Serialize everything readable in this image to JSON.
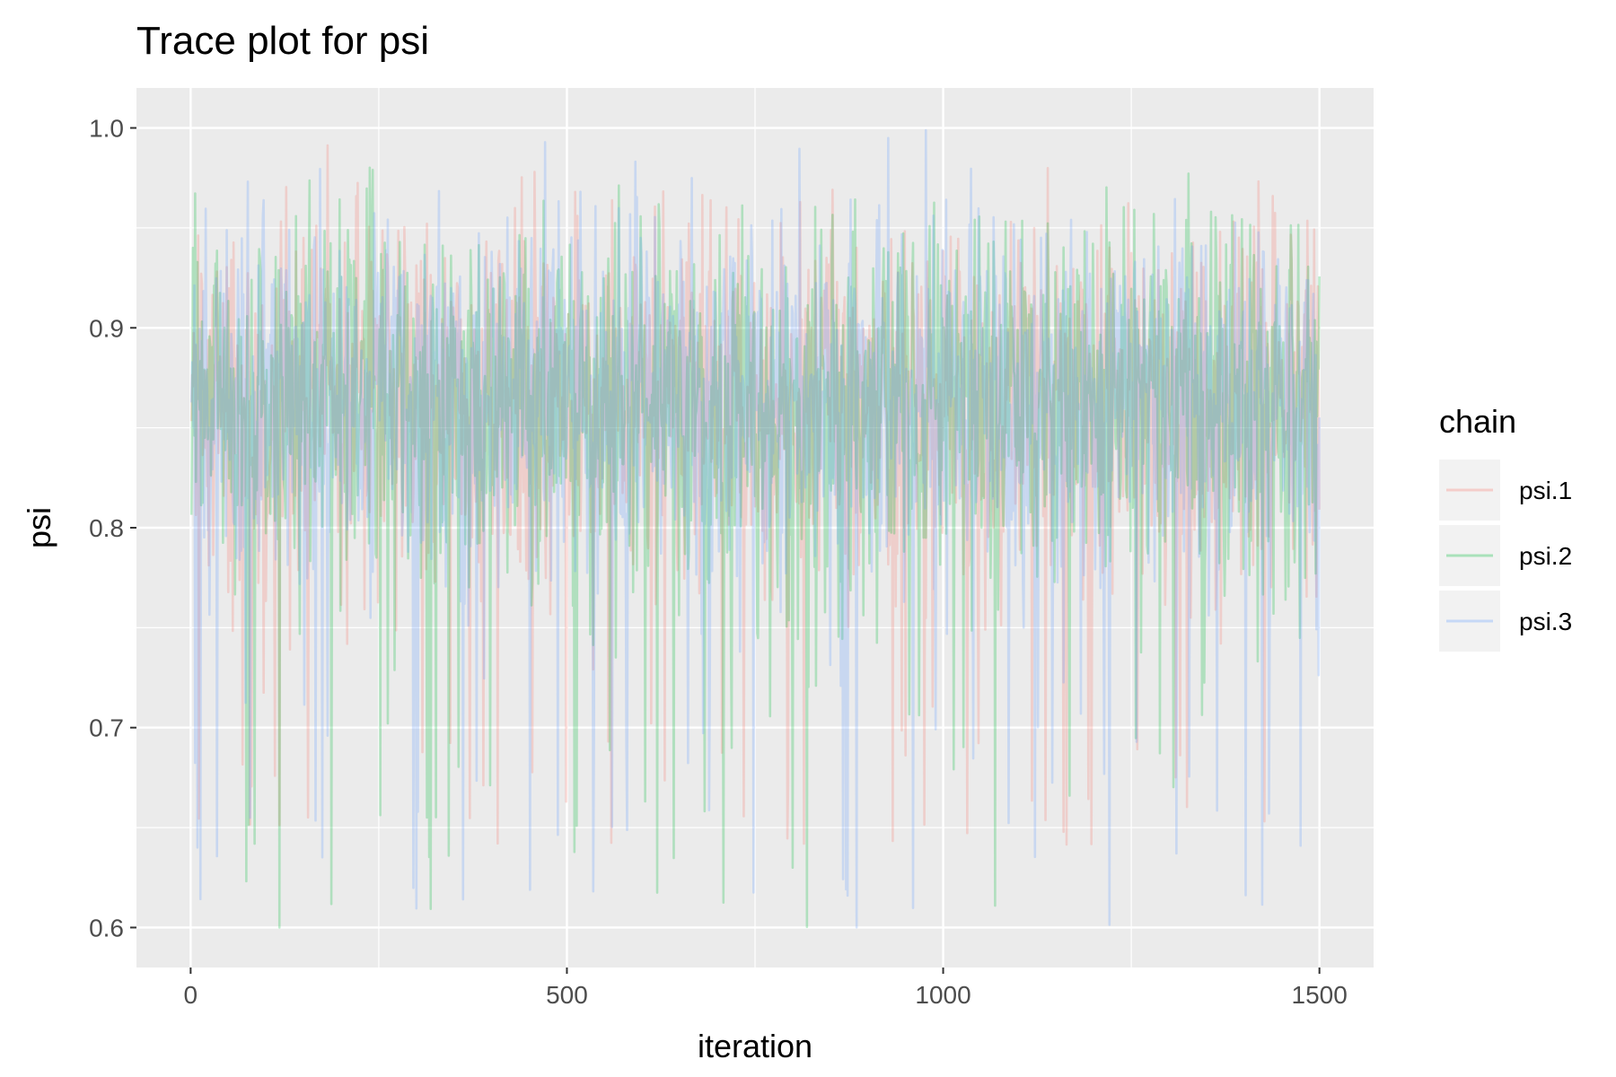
{
  "chart_data": {
    "type": "line",
    "title": "Trace plot for psi",
    "xlabel": "iteration",
    "ylabel": "psi",
    "xlim": [
      -72,
      1572
    ],
    "ylim": [
      0.58,
      1.02
    ],
    "x_ticks": [
      0,
      500,
      1000,
      1500
    ],
    "x_tick_labels": [
      "0",
      "500",
      "1000",
      "1500"
    ],
    "y_ticks": [
      0.6,
      0.7,
      0.8,
      0.9,
      1.0
    ],
    "y_tick_labels": [
      "0.6",
      "0.7",
      "0.8",
      "0.9",
      "1.0"
    ],
    "grid": true,
    "legend": {
      "title": "chain",
      "position": "right"
    },
    "x_range": [
      1,
      1500
    ],
    "series": [
      {
        "name": "psi.1",
        "color": "#F8766D",
        "opacity": 0.25,
        "mean": 0.865,
        "sd": 0.06,
        "min": 0.64,
        "max": 0.999
      },
      {
        "name": "psi.2",
        "color": "#00BA38",
        "opacity": 0.25,
        "mean": 0.865,
        "sd": 0.06,
        "min": 0.6,
        "max": 0.998
      },
      {
        "name": "psi.3",
        "color": "#619CFF",
        "opacity": 0.25,
        "mean": 0.865,
        "sd": 0.06,
        "min": 0.6,
        "max": 1.0
      }
    ]
  }
}
